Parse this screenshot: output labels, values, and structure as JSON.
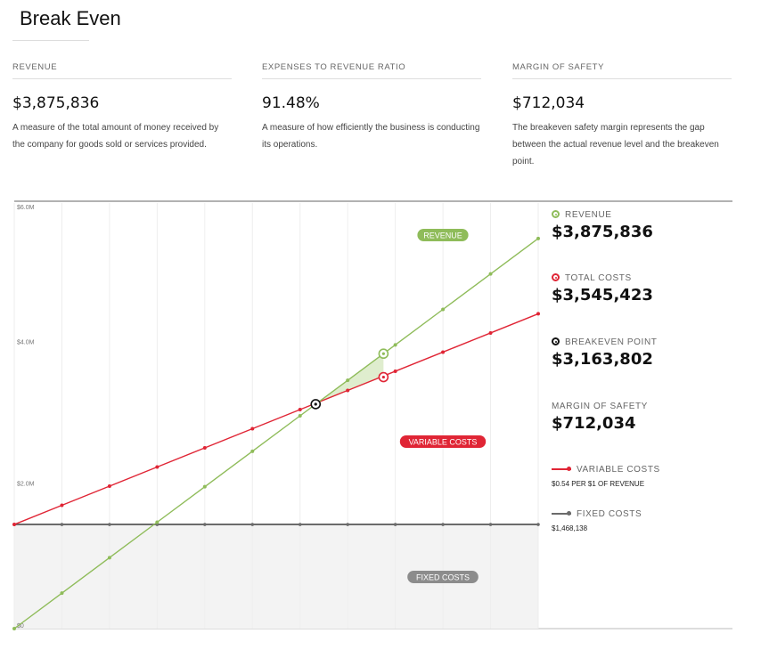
{
  "title": "Break Even",
  "metrics": [
    {
      "label": "REVENUE",
      "value": "$3,875,836",
      "desc": "A measure of the total amount of money received by the company for goods sold or services provided."
    },
    {
      "label": "EXPENSES TO REVENUE RATIO",
      "value": "91.48%",
      "desc": "A measure of how efficiently the business is conducting its operations."
    },
    {
      "label": "MARGIN OF SAFETY",
      "value": "$712,034",
      "desc": "The breakeven safety margin represents the gap between the actual revenue level and the breakeven point."
    }
  ],
  "legend": {
    "revenue": {
      "label": "REVENUE",
      "value": "$3,875,836"
    },
    "total_costs": {
      "label": "TOTAL COSTS",
      "value": "$3,545,423"
    },
    "breakeven": {
      "label": "BREAKEVEN POINT",
      "value": "$3,163,802"
    },
    "margin": {
      "label": "MARGIN OF SAFETY",
      "value": "$712,034"
    },
    "variable": {
      "label": "VARIABLE COSTS",
      "note": "$0.54 PER $1 OF REVENUE"
    },
    "fixed": {
      "label": "FIXED COSTS",
      "note": "$1,468,138"
    }
  },
  "colors": {
    "revenue": "#8fbc5a",
    "costs": "#e02535",
    "fixed": "#6b6b6b",
    "fixed_area": "#f3f3f3",
    "breakeven": "#111111"
  },
  "chart_data": {
    "type": "line",
    "y_ticks": [
      "$6.0M",
      "$4.0M",
      "$2.0M",
      "$0"
    ],
    "ylim": [
      0,
      6000000
    ],
    "revenue_max": 5500000,
    "current_revenue": 3875836,
    "fixed_costs": 1468138,
    "variable_rate": 0.54,
    "breakeven": 3163802,
    "series": [
      {
        "name": "REVENUE",
        "x": [
          0,
          500000,
          1000000,
          1500000,
          2000000,
          2500000,
          3000000,
          3500000,
          4000000,
          4500000,
          5000000,
          5500000
        ],
        "values": [
          0,
          500000,
          1000000,
          1500000,
          2000000,
          2500000,
          3000000,
          3500000,
          4000000,
          4500000,
          5000000,
          5500000
        ]
      },
      {
        "name": "TOTAL COSTS",
        "x": [
          0,
          500000,
          1000000,
          1500000,
          2000000,
          2500000,
          3000000,
          3500000,
          4000000,
          4500000,
          5000000,
          5500000
        ],
        "values": [
          1468138,
          1738138,
          2008138,
          2278138,
          2548138,
          2818138,
          3088138,
          3358138,
          3628138,
          3898138,
          4168138,
          4438138
        ]
      },
      {
        "name": "FIXED COSTS",
        "x": [
          0,
          5500000
        ],
        "values": [
          1468138,
          1468138
        ]
      }
    ],
    "annotations": [
      "REVENUE",
      "VARIABLE COSTS",
      "FIXED COSTS"
    ],
    "markers": {
      "revenue_at_current": 3875836,
      "costs_at_current": 3545423,
      "breakeven": 3163802
    }
  }
}
